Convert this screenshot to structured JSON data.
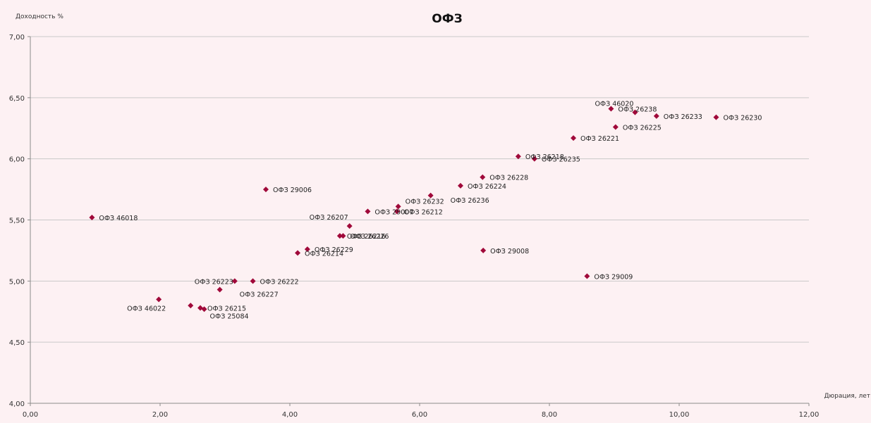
{
  "chart_data": {
    "type": "scatter",
    "title": "ОФЗ",
    "xlabel": "Дюрация, лет",
    "ylabel": "Доходность %",
    "xlim": [
      0,
      12
    ],
    "ylim": [
      4,
      7
    ],
    "x_ticks": [
      0,
      2,
      4,
      6,
      8,
      10,
      12
    ],
    "y_ticks": [
      4,
      4.5,
      5,
      5.5,
      6,
      6.5,
      7
    ],
    "x_tick_labels": [
      "0,00",
      "2,00",
      "4,00",
      "6,00",
      "8,00",
      "10,00",
      "12,00"
    ],
    "y_tick_labels": [
      "4,00",
      "4,50",
      "5,00",
      "5,50",
      "6,00",
      "6,50",
      "7,00"
    ],
    "grid": "horizontal",
    "legend": "none",
    "marker_color": "#a0093a",
    "points": [
      {
        "label": "ОФЗ 46018",
        "x": 0.95,
        "y": 5.52
      },
      {
        "label": "ОФЗ 46022",
        "x": 1.98,
        "y": 4.85,
        "label_pos": "below-left"
      },
      {
        "label": "ОФЗ 26215",
        "x": 2.62,
        "y": 4.78
      },
      {
        "label": "",
        "x": 2.47,
        "y": 4.8
      },
      {
        "label": "ОФЗ 25084",
        "x": 2.68,
        "y": 4.77,
        "label_pos": "below"
      },
      {
        "label": "ОФЗ 26227",
        "x": 2.92,
        "y": 4.93,
        "label_pos": "below-right"
      },
      {
        "label": "ОФЗ 26223",
        "x": 3.15,
        "y": 5.0,
        "label_pos": "left"
      },
      {
        "label": "ОФЗ 26222",
        "x": 3.43,
        "y": 5.0
      },
      {
        "label": "ОФЗ 29006",
        "x": 3.63,
        "y": 5.75
      },
      {
        "label": "ОФЗ 26214",
        "x": 4.12,
        "y": 5.23
      },
      {
        "label": "ОФЗ 26229",
        "x": 4.27,
        "y": 5.26
      },
      {
        "label": "ОФЗ 26216",
        "x": 4.77,
        "y": 5.37
      },
      {
        "label": "ОФЗ 26226",
        "x": 4.82,
        "y": 5.37
      },
      {
        "label": "ОФЗ 26207",
        "x": 4.92,
        "y": 5.45,
        "label_pos": "above-left"
      },
      {
        "label": "ОФЗ 29007",
        "x": 5.2,
        "y": 5.57
      },
      {
        "label": "ОФЗ 26212",
        "x": 5.65,
        "y": 5.57
      },
      {
        "label": "ОФЗ 26232",
        "x": 5.67,
        "y": 5.61,
        "label_pos": "above-right"
      },
      {
        "label": "ОФЗ 26236",
        "x": 6.17,
        "y": 5.7,
        "label_pos": "below-right"
      },
      {
        "label": "ОФЗ 26224",
        "x": 6.63,
        "y": 5.78
      },
      {
        "label": "ОФЗ 26228",
        "x": 6.97,
        "y": 5.85
      },
      {
        "label": "ОФЗ 29008",
        "x": 6.98,
        "y": 5.25
      },
      {
        "label": "ОФЗ 26218",
        "x": 7.52,
        "y": 6.02
      },
      {
        "label": "ОФЗ 26235",
        "x": 7.77,
        "y": 6.0
      },
      {
        "label": "ОФЗ 26221",
        "x": 8.37,
        "y": 6.17
      },
      {
        "label": "ОФЗ 29009",
        "x": 8.58,
        "y": 5.04
      },
      {
        "label": "ОФЗ 26238",
        "x": 8.95,
        "y": 6.41
      },
      {
        "label": "ОФЗ 26225",
        "x": 9.02,
        "y": 6.26
      },
      {
        "label": "ОФЗ 46020",
        "x": 9.32,
        "y": 6.38,
        "label_pos": "above-left"
      },
      {
        "label": "ОФЗ 26233",
        "x": 9.65,
        "y": 6.35
      },
      {
        "label": "ОФЗ 26230",
        "x": 10.57,
        "y": 6.34
      }
    ]
  }
}
